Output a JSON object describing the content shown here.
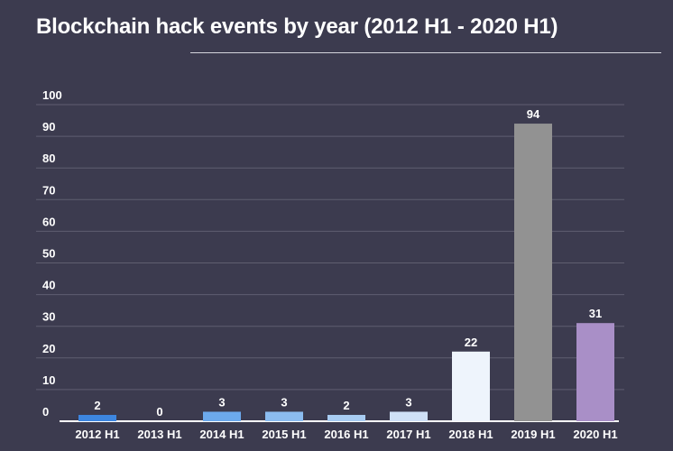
{
  "chart_data": {
    "type": "bar",
    "title": "Blockchain hack events by year (2012 H1 - 2020 H1)",
    "categories": [
      "2012 H1",
      "2013 H1",
      "2014 H1",
      "2015 H1",
      "2016 H1",
      "2017 H1",
      "2018 H1",
      "2019 H1",
      "2020 H1"
    ],
    "values": [
      2,
      0,
      3,
      3,
      2,
      3,
      22,
      94,
      31
    ],
    "data_labels": [
      "2",
      "0",
      "3",
      "3",
      "2",
      "3",
      "22",
      "94",
      "31"
    ],
    "bar_colors": [
      "#3d86e0",
      "#3d86e0",
      "#6ca9ec",
      "#8bbcf0",
      "#a8ccf2",
      "#cfe0f6",
      "#eef4fc",
      "#929292",
      "#a98fc7"
    ],
    "ylim": [
      0,
      100
    ],
    "yticks": [
      0,
      10,
      20,
      30,
      40,
      50,
      60,
      70,
      80,
      90,
      100
    ],
    "grid": true,
    "legend": "none",
    "xlabel": "",
    "ylabel": ""
  },
  "colors": {
    "background": "#3c3b4f",
    "grid": "#5f5e70",
    "baseline": "#ffffff",
    "text": "#ffffff"
  }
}
